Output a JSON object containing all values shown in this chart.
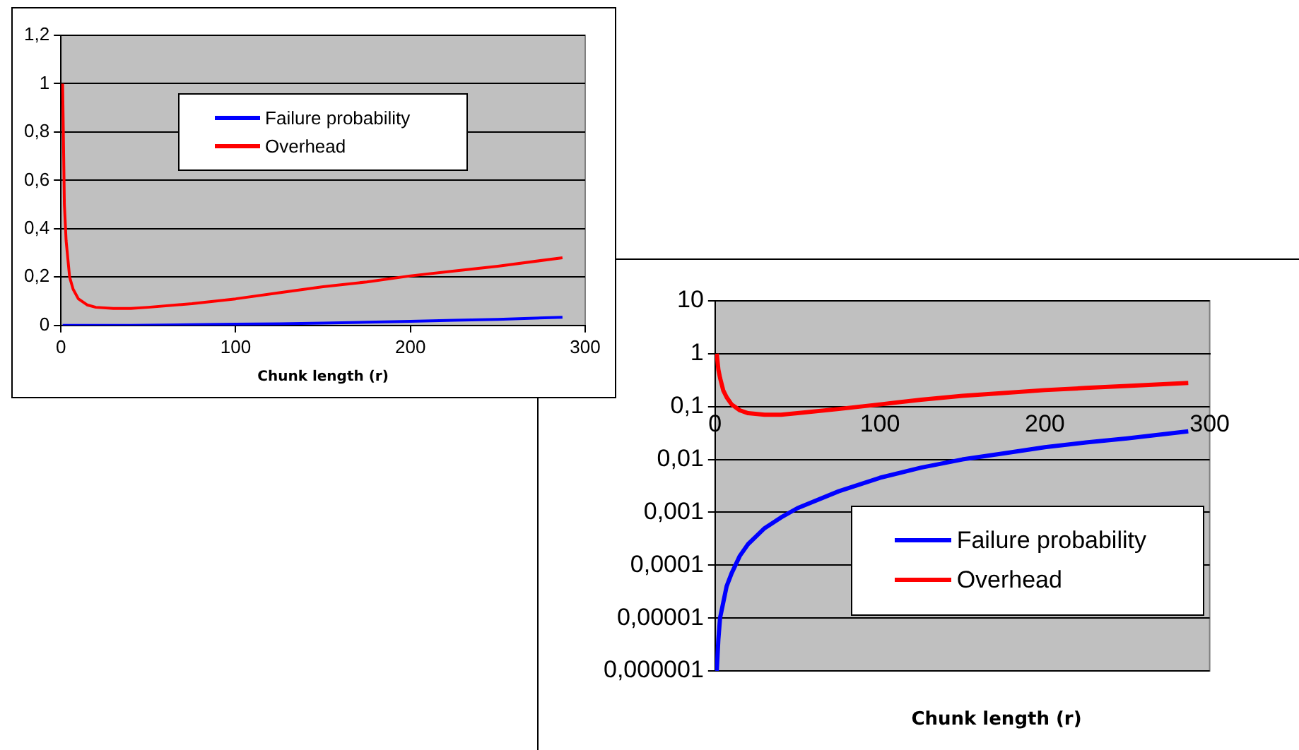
{
  "chart_data": [
    {
      "type": "line",
      "xlabel": "Chunk length (r)",
      "x": [
        1,
        2,
        3,
        5,
        7,
        10,
        15,
        20,
        30,
        40,
        50,
        75,
        100,
        125,
        150,
        175,
        200,
        225,
        250,
        287
      ],
      "xlim": [
        0,
        300
      ],
      "xticks": [
        0,
        100,
        200,
        300
      ],
      "ylim": [
        0,
        1.2
      ],
      "yticks": [
        0,
        {
          "value": 0.2,
          "label": "0,2"
        },
        {
          "value": 0.4,
          "label": "0,4"
        },
        {
          "value": 0.6,
          "label": "0,6"
        },
        {
          "value": 0.8,
          "label": "0,8"
        },
        1,
        {
          "value": 1.2,
          "label": "1,2"
        }
      ],
      "grid": "y",
      "legend": "top",
      "marker": "none",
      "line_style": "solid",
      "series": [
        {
          "name": "Failure probability",
          "color": "#0000ff",
          "values": [
            0,
            0,
            0,
            0,
            0,
            0,
            0,
            0,
            0,
            0,
            0.001,
            0.003,
            0.005,
            0.007,
            0.01,
            0.013,
            0.017,
            0.021,
            0.025,
            0.034
          ]
        },
        {
          "name": "Overhead",
          "color": "#ff0000",
          "values": [
            1,
            0.5,
            0.35,
            0.2,
            0.15,
            0.11,
            0.085,
            0.075,
            0.07,
            0.07,
            0.075,
            0.09,
            0.11,
            0.135,
            0.16,
            0.18,
            0.205,
            0.225,
            0.245,
            0.28
          ]
        }
      ]
    },
    {
      "type": "line",
      "xlabel": "Chunk length (r)",
      "log": "y",
      "x": [
        1,
        2,
        3,
        5,
        7,
        10,
        15,
        20,
        30,
        40,
        50,
        75,
        100,
        125,
        150,
        175,
        200,
        225,
        250,
        287
      ],
      "xlim": [
        0,
        300
      ],
      "xticks": [
        0,
        100,
        200,
        300
      ],
      "ylim": [
        1e-06,
        10
      ],
      "yticks": [
        {
          "value": 1e-06,
          "label": "0,000001"
        },
        {
          "value": 1e-05,
          "label": "0,00001"
        },
        {
          "value": 0.0001,
          "label": "0,0001"
        },
        {
          "value": 0.001,
          "label": "0,001"
        },
        {
          "value": 0.01,
          "label": "0,01"
        },
        {
          "value": 0.1,
          "label": "0,1"
        },
        1,
        10
      ],
      "grid": "y",
      "legend": "bottom right",
      "marker": "none",
      "line_style": "solid",
      "series": [
        {
          "name": "Failure probability",
          "color": "#0000ff",
          "values": [
            1e-06,
            4e-06,
            1e-05,
            2e-05,
            4e-05,
            7e-05,
            0.00015,
            0.00025,
            0.0005,
            0.0008,
            0.0012,
            0.0025,
            0.0045,
            0.007,
            0.01,
            0.013,
            0.017,
            0.021,
            0.025,
            0.034
          ]
        },
        {
          "name": "Overhead",
          "color": "#ff0000",
          "values": [
            1,
            0.5,
            0.35,
            0.2,
            0.15,
            0.11,
            0.085,
            0.075,
            0.07,
            0.07,
            0.075,
            0.09,
            0.11,
            0.135,
            0.16,
            0.18,
            0.205,
            0.225,
            0.245,
            0.28
          ]
        }
      ]
    }
  ]
}
